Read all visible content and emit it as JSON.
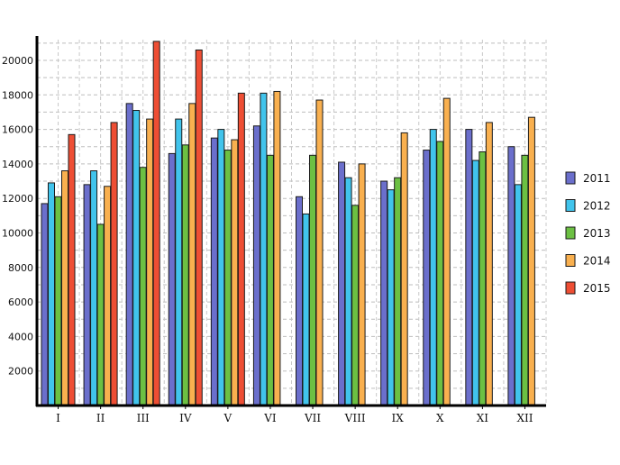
{
  "chart_data": {
    "type": "bar",
    "title": "",
    "xlabel": "",
    "ylabel": "",
    "ylim": [
      0,
      21200
    ],
    "y_ticks": [
      2000,
      4000,
      6000,
      8000,
      10000,
      12000,
      14000,
      16000,
      18000,
      20000
    ],
    "grid": true,
    "legend_position": "right",
    "categories": [
      "I",
      "II",
      "III",
      "IV",
      "V",
      "VI",
      "VII",
      "VIII",
      "IX",
      "X",
      "XI",
      "XII"
    ],
    "series": [
      {
        "name": "2011",
        "color": "#6b6fcc",
        "values": [
          11700,
          12800,
          17500,
          14600,
          15500,
          16200,
          12100,
          14100,
          13000,
          14800,
          16000,
          15000
        ]
      },
      {
        "name": "2012",
        "color": "#41c4ec",
        "values": [
          12900,
          13600,
          17100,
          16600,
          16000,
          18100,
          11100,
          13200,
          12500,
          16000,
          14200,
          12800
        ]
      },
      {
        "name": "2013",
        "color": "#6cc043",
        "values": [
          12100,
          10500,
          13800,
          15100,
          14800,
          14500,
          14500,
          11600,
          13200,
          15300,
          14700,
          14500
        ]
      },
      {
        "name": "2014",
        "color": "#f9b04f",
        "values": [
          13600,
          12700,
          16600,
          17500,
          15400,
          18200,
          17700,
          14000,
          15800,
          17800,
          16400,
          16700
        ]
      },
      {
        "name": "2015",
        "color": "#ee4e34",
        "values": [
          15700,
          16400,
          21100,
          20600,
          18100,
          null,
          null,
          null,
          null,
          null,
          null,
          null
        ]
      }
    ]
  }
}
